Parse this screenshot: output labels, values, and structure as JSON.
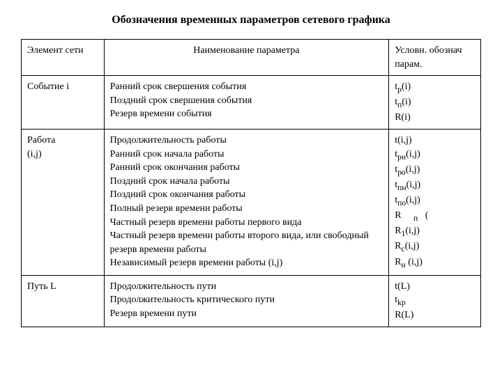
{
  "title": "Обозначения временных параметров сетевого графика",
  "headers": {
    "col1": "Элемент сети",
    "col2": "Наименование параметра",
    "col3": "Условн. обознач парам."
  },
  "rows": [
    {
      "element": "Событие i",
      "names": [
        "Ранний срок свершения события",
        "Поздний срок свершения события",
        "Резерв времени события"
      ],
      "symbols": [
        "t<sub>р</sub>(i)",
        "t<sub>п</sub>(i)",
        "R(i)"
      ]
    },
    {
      "element": "Работа\n(i,j)",
      "names": [
        "Продолжительность работы",
        "Ранний срок начала работы",
        "Ранний срок окончания работы",
        "Поздний срок начала работы",
        "Поздний срок окончания работы",
        "Полный резерв времени работы",
        "Частный резерв времени работы первого вида",
        "Частный резерв времени работы второго вида, или свободный резерв времени работы",
        "Независимый резерв времени работы (i,j)"
      ],
      "symbols": [
        "t(i,j)",
        "t<sub>рн</sub>(i,j)",
        "t<sub>ро</sub>(i,j)",
        "t<sub>пн</sub>(i,j)",
        "t<sub>по</sub>(i,j)",
        "R&nbsp;&nbsp;&nbsp;&nbsp;&nbsp;<sub>п</sub>&nbsp;&nbsp;&nbsp;(",
        "R<sub>1</sub>(i,j)",
        "R<sub>c</sub>(i,j)",
        "",
        "R<sub>н</sub> (i,j)"
      ]
    },
    {
      "element": "Путь L",
      "names": [
        "Продолжительность пути",
        "Продолжительность критического пути",
        "Резерв времени пути"
      ],
      "symbols": [
        "t(L)",
        "t<sub>kp</sub>",
        "R(L)"
      ]
    }
  ]
}
